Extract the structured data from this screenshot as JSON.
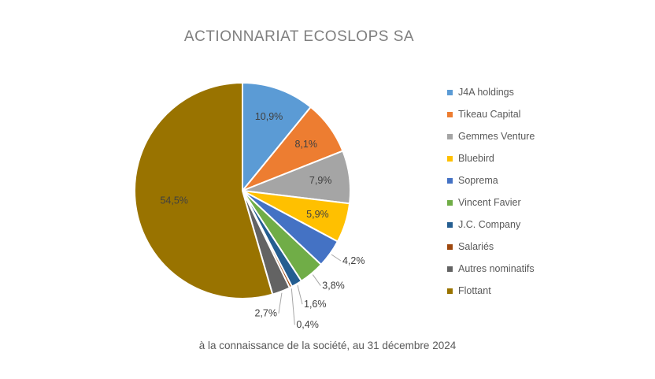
{
  "chart_data": {
    "type": "pie",
    "title": "ACTIONNARIAT  ECOSLOPS SA",
    "subtitle": "à la connaissance de la société, au 31 décembre 2024",
    "legend_position": "right",
    "slices": [
      {
        "name": "J4A holdings",
        "value": 10.9,
        "label": "10,9%",
        "color": "#5b9bd5"
      },
      {
        "name": "Tikeau Capital",
        "value": 8.1,
        "label": "8,1%",
        "color": "#ed7d31"
      },
      {
        "name": "Gemmes Venture",
        "value": 7.9,
        "label": "7,9%",
        "color": "#a5a5a5"
      },
      {
        "name": "Bluebird",
        "value": 5.9,
        "label": "5,9%",
        "color": "#ffc000"
      },
      {
        "name": "Soprema",
        "value": 4.2,
        "label": "4,2%",
        "color": "#4472c4"
      },
      {
        "name": "Vincent Favier",
        "value": 3.8,
        "label": "3,8%",
        "color": "#70ad47"
      },
      {
        "name": "J.C. Company",
        "value": 1.6,
        "label": "1,6%",
        "color": "#255e91"
      },
      {
        "name": "Salariés",
        "value": 0.4,
        "label": "0,4%",
        "color": "#9e480e"
      },
      {
        "name": "Autres nominatifs",
        "value": 2.7,
        "label": "2,7%",
        "color": "#636363"
      },
      {
        "name": "Flottant",
        "value": 54.5,
        "label": "54,5%",
        "color": "#997300"
      }
    ]
  }
}
